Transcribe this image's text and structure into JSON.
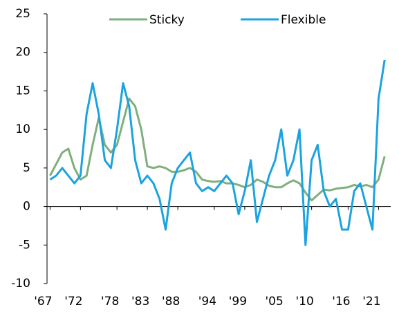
{
  "chart_data": {
    "type": "line",
    "x": [
      1967,
      1968,
      1969,
      1970,
      1971,
      1972,
      1973,
      1974,
      1975,
      1976,
      1977,
      1978,
      1979,
      1980,
      1981,
      1982,
      1983,
      1984,
      1985,
      1986,
      1987,
      1988,
      1989,
      1990,
      1991,
      1992,
      1993,
      1994,
      1995,
      1996,
      1997,
      1998,
      1999,
      2000,
      2001,
      2002,
      2003,
      2004,
      2005,
      2006,
      2007,
      2008,
      2009,
      2010,
      2011,
      2012,
      2013,
      2014,
      2015,
      2016,
      2017,
      2018,
      2019,
      2020,
      2021,
      2022
    ],
    "series": [
      {
        "name": "Sticky",
        "color": "#7faf7c",
        "values": [
          4,
          5.5,
          7,
          7.5,
          5,
          3.5,
          4,
          8,
          11.5,
          8,
          7,
          8,
          11,
          14,
          13,
          10,
          5.2,
          5,
          5.2,
          5,
          4.5,
          4.5,
          4.7,
          5,
          4.5,
          3.5,
          3.3,
          3.2,
          3.3,
          3,
          3,
          2.8,
          2.5,
          2.8,
          3.5,
          3.2,
          2.7,
          2.5,
          2.5,
          3,
          3.4,
          3,
          1.8,
          0.8,
          1.5,
          2.2,
          2.1,
          2.3,
          2.4,
          2.5,
          2.8,
          2.6,
          2.8,
          2.5,
          3.5,
          6.5
        ]
      },
      {
        "name": "Flexible",
        "color": "#1ba3e0",
        "values": [
          3.5,
          4,
          5,
          4,
          3,
          4,
          12,
          16,
          12,
          6,
          5,
          10,
          16,
          13,
          6,
          3,
          4,
          3,
          1,
          -3,
          3,
          5,
          6,
          7,
          3,
          2,
          2.5,
          2,
          3,
          4,
          3,
          -1,
          2,
          6,
          -2,
          1,
          4,
          6,
          10,
          4,
          6,
          10,
          -5,
          6,
          8,
          2,
          0,
          1,
          -3,
          -3,
          2,
          3,
          0,
          -3,
          14,
          19
        ]
      }
    ],
    "xlim": [
      1966.5,
      2023
    ],
    "xticks": [
      {
        "value": 1967,
        "label": "'67"
      },
      {
        "value": 1972,
        "label": "'72"
      },
      {
        "value": 1978,
        "label": "'78"
      },
      {
        "value": 1983,
        "label": "'83"
      },
      {
        "value": 1988,
        "label": "'88"
      },
      {
        "value": 1994,
        "label": "'94"
      },
      {
        "value": 1999,
        "label": "'99"
      },
      {
        "value": 2005,
        "label": "'05"
      },
      {
        "value": 2010,
        "label": "'10"
      },
      {
        "value": 2016,
        "label": "'16"
      },
      {
        "value": 2021,
        "label": "'21"
      }
    ],
    "ylim": [
      -10,
      25
    ],
    "yticks": [
      -10,
      -5,
      0,
      5,
      10,
      15,
      20,
      25
    ],
    "legend": "top"
  }
}
